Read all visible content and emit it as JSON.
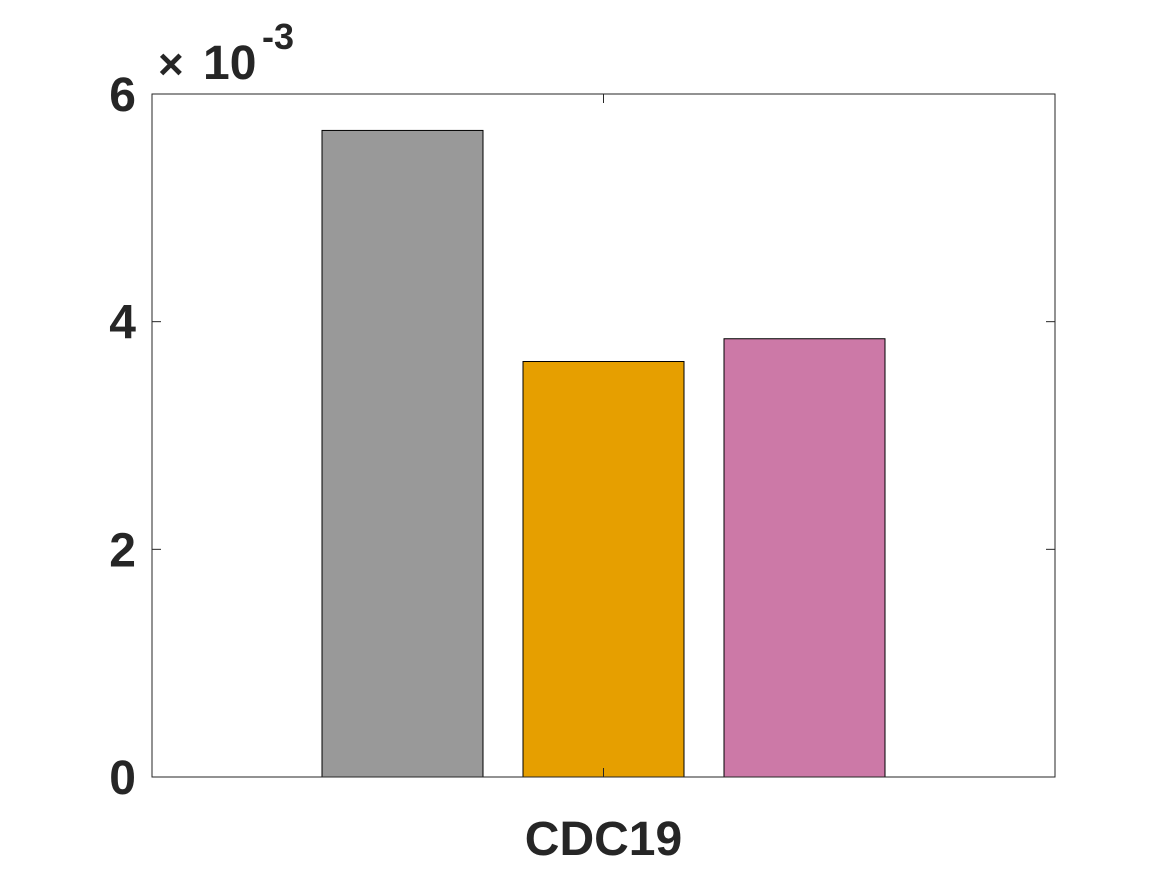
{
  "chart_data": {
    "type": "bar",
    "categories": [
      "CDC19"
    ],
    "series": [
      {
        "values": [
          0.00568
        ],
        "color": "#999999"
      },
      {
        "values": [
          0.00365
        ],
        "color": "#E69F00"
      },
      {
        "values": [
          0.00385
        ],
        "color": "#CC79A7"
      }
    ],
    "ylim": [
      0,
      0.006
    ],
    "yticks": [
      0,
      2,
      4,
      6
    ],
    "ytick_labels": [
      "0",
      "2",
      "4",
      "6"
    ],
    "y_exponent": {
      "base": "10",
      "power": "-3"
    },
    "xlabel": "",
    "ylabel": "",
    "title": "",
    "grid": false,
    "legend": "none"
  }
}
